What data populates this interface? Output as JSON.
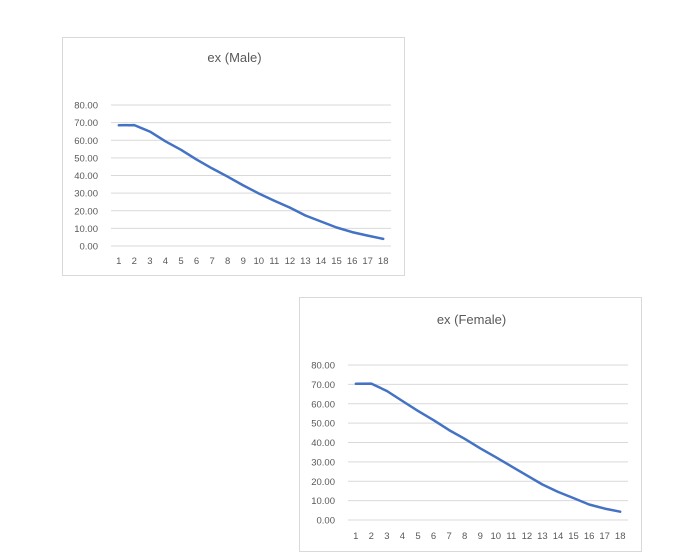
{
  "chart_data": [
    {
      "type": "line",
      "title": "ex (Male)",
      "xlabel": "",
      "ylabel": "",
      "categories": [
        "1",
        "2",
        "3",
        "4",
        "5",
        "6",
        "7",
        "8",
        "9",
        "10",
        "11",
        "12",
        "13",
        "14",
        "15",
        "16",
        "17",
        "18"
      ],
      "series": [
        {
          "values": [
            68.5,
            68.6,
            64.9,
            59.4,
            54.6,
            49.0,
            44.0,
            39.3,
            34.4,
            29.8,
            25.7,
            21.8,
            17.3,
            13.9,
            10.5,
            7.9,
            5.9,
            4.0
          ]
        }
      ],
      "ylim": [
        0,
        80
      ],
      "yticks": [
        "0.00",
        "10.00",
        "20.00",
        "30.00",
        "40.00",
        "50.00",
        "60.00",
        "70.00",
        "80.00"
      ],
      "grid": true,
      "color": "#4472c4"
    },
    {
      "type": "line",
      "title": "ex (Female)",
      "xlabel": "",
      "ylabel": "",
      "categories": [
        "1",
        "2",
        "3",
        "4",
        "5",
        "6",
        "7",
        "8",
        "9",
        "10",
        "11",
        "12",
        "13",
        "14",
        "15",
        "16",
        "17",
        "18"
      ],
      "series": [
        {
          "values": [
            70.3,
            70.4,
            66.6,
            61.4,
            56.3,
            51.5,
            46.4,
            41.9,
            37.0,
            32.4,
            27.7,
            23.0,
            18.3,
            14.5,
            11.3,
            8.0,
            5.9,
            4.3
          ]
        }
      ],
      "ylim": [
        0,
        80
      ],
      "yticks": [
        "0.00",
        "10.00",
        "20.00",
        "30.00",
        "40.00",
        "50.00",
        "60.00",
        "70.00",
        "80.00"
      ],
      "grid": true,
      "color": "#4472c4"
    }
  ]
}
